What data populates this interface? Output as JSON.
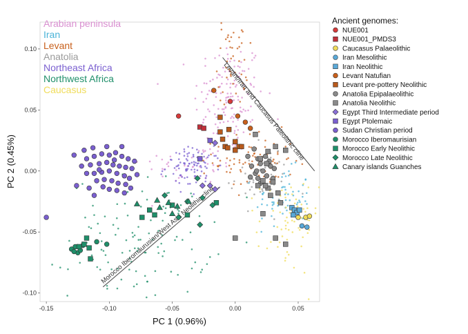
{
  "chart_data": {
    "type": "scatter",
    "xlabel": "PC 1 (0.96%)",
    "ylabel": "PC 2 (0.45%)",
    "xlim": [
      -0.155,
      0.067
    ],
    "ylim": [
      -0.107,
      0.122
    ],
    "x_ticks": [
      -0.15,
      -0.1,
      -0.05,
      0.0,
      0.05
    ],
    "x_tick_labels": [
      "-0.15",
      "-0.10",
      "-0.05",
      "0.00",
      "0.05"
    ],
    "y_ticks": [
      -0.1,
      -0.05,
      0.0,
      0.05,
      0.1
    ],
    "y_tick_labels": [
      "-0.10",
      "-0.05",
      "0.00",
      "0.05",
      "0.10"
    ],
    "grid": false,
    "region_legend": [
      {
        "label": "Arabian peninsula",
        "color": "#d98fd0"
      },
      {
        "label": "Iran",
        "color": "#4ab3d8"
      },
      {
        "label": "Levant",
        "color": "#c8601c"
      },
      {
        "label": "Anatolia",
        "color": "#9a9a9a"
      },
      {
        "label": "Northeast Africa",
        "color": "#7a5fd0"
      },
      {
        "label": "Northwest Africa",
        "color": "#1f8f6a"
      },
      {
        "label": "Caucasus",
        "color": "#f0dc5a"
      }
    ],
    "legend_title": "Ancient genomes:",
    "ancient_legend": [
      {
        "label": "NUE001",
        "shape": "circle",
        "color": "#d63a3a"
      },
      {
        "label": "NUE001_PMDS3",
        "shape": "square",
        "color": "#c0303a"
      },
      {
        "label": "Caucasus Palaeolithic",
        "shape": "circle",
        "color": "#f0dc5a"
      },
      {
        "label": "Iran Mesolithic",
        "shape": "circle",
        "color": "#5aa9d8"
      },
      {
        "label": "Iran Neolithic",
        "shape": "square",
        "color": "#5aa9d8"
      },
      {
        "label": "Levant Natufian",
        "shape": "circle",
        "color": "#c8601c"
      },
      {
        "label": "Levant pre-pottery Neolithic",
        "shape": "square",
        "color": "#b85a1c"
      },
      {
        "label": "Anatolia Epipalaeolithic",
        "shape": "circle",
        "color": "#8a8a8a"
      },
      {
        "label": "Anatolia Neolithic",
        "shape": "square",
        "color": "#8a8a8a"
      },
      {
        "label": "Egypt Third Intermediate period",
        "shape": "diamond",
        "color": "#8a6fd8"
      },
      {
        "label": "Egypt Ptolemaic",
        "shape": "square",
        "color": "#7a5fd0"
      },
      {
        "label": "Sudan Christian period",
        "shape": "circle",
        "color": "#7a5fd0"
      },
      {
        "label": "Morocco Iberomaurisian",
        "shape": "circle",
        "color": "#1f8f6a"
      },
      {
        "label": "Morocco Early Neolithic",
        "shape": "square",
        "color": "#1f8f6a"
      },
      {
        "label": "Morocco Late Neolithic",
        "shape": "diamond",
        "color": "#1f8f6a"
      },
      {
        "label": "Canary islands Guanches",
        "shape": "triangle",
        "color": "#1f8f6a"
      }
    ],
    "clines": [
      {
        "label": "Levant/Iran and Caucasus Paleolithic cline",
        "from": [
          -0.01,
          0.093
        ],
        "to": [
          0.063,
          0.0
        ]
      },
      {
        "label": "Morocco Iberomaurusian/West Asia Neolithic cline",
        "from": [
          -0.105,
          -0.095
        ],
        "to": [
          -0.012,
          -0.013
        ]
      }
    ],
    "background_clusters": [
      {
        "group": "Arabian peninsula",
        "color": "#d98fd0",
        "cx": -0.005,
        "cy": 0.06,
        "sx": 0.014,
        "sy": 0.024,
        "n": 140
      },
      {
        "group": "Arabian peninsula",
        "color": "#d98fd0",
        "cx": -0.035,
        "cy": 0.005,
        "sx": 0.02,
        "sy": 0.008,
        "n": 40
      },
      {
        "group": "Iran",
        "color": "#4ab3d8",
        "cx": 0.038,
        "cy": -0.022,
        "sx": 0.011,
        "sy": 0.012,
        "n": 60
      },
      {
        "group": "Levant",
        "color": "#c8601c",
        "cx": 0.015,
        "cy": 0.008,
        "sx": 0.016,
        "sy": 0.012,
        "n": 90
      },
      {
        "group": "Levant",
        "color": "#c8601c",
        "cx": -0.002,
        "cy": 0.09,
        "sx": 0.006,
        "sy": 0.018,
        "n": 45
      },
      {
        "group": "Anatolia",
        "color": "#9a9a9a",
        "cx": 0.02,
        "cy": -0.005,
        "sx": 0.012,
        "sy": 0.012,
        "n": 50
      },
      {
        "group": "Northeast Africa",
        "color": "#7a5fd0",
        "cx": -0.033,
        "cy": 0.003,
        "sx": 0.011,
        "sy": 0.008,
        "n": 90
      },
      {
        "group": "Northwest Africa",
        "color": "#1f8f6a",
        "cx": -0.075,
        "cy": -0.055,
        "sx": 0.028,
        "sy": 0.025,
        "n": 120
      },
      {
        "group": "Caucasus",
        "color": "#f0dc5a",
        "cx": 0.042,
        "cy": -0.045,
        "sx": 0.012,
        "sy": 0.02,
        "n": 70
      }
    ],
    "points": {
      "NUE001": [
        [
          -0.045,
          0.045
        ],
        [
          -0.004,
          0.057
        ]
      ],
      "NUE001_PMDS3": [
        [
          -0.028,
          0.036
        ],
        [
          -0.025,
          0.035
        ]
      ],
      "Caucasus Palaeolithic": [
        [
          0.05,
          -0.038
        ],
        [
          0.056,
          -0.038
        ],
        [
          0.059,
          -0.037
        ]
      ],
      "Iran Mesolithic": [
        [
          0.053,
          -0.045
        ],
        [
          0.057,
          -0.046
        ]
      ],
      "Iran Neolithic": [
        [
          0.045,
          -0.03
        ],
        [
          0.047,
          -0.032
        ],
        [
          0.049,
          -0.034
        ],
        [
          0.051,
          -0.032
        ],
        [
          0.046,
          -0.036
        ]
      ],
      "Levant Natufian": [
        [
          -0.017,
          0.066
        ],
        [
          0.002,
          0.045
        ],
        [
          0.012,
          0.035
        ],
        [
          0.008,
          0.04
        ]
      ],
      "Levant pre-pottery Neolithic": [
        [
          -0.012,
          0.044
        ],
        [
          -0.005,
          0.034
        ],
        [
          -0.012,
          0.032
        ],
        [
          -0.01,
          0.026
        ],
        [
          -0.008,
          0.02
        ],
        [
          0.0,
          0.024
        ],
        [
          0.003,
          0.02
        ],
        [
          -0.006,
          0.019
        ],
        [
          0.0,
          0.017
        ],
        [
          0.005,
          0.02
        ]
      ],
      "Anatolia Epipalaeolithic": [
        [
          0.015,
          0.018
        ],
        [
          0.01,
          0.012
        ],
        [
          0.018,
          0.01
        ],
        [
          0.024,
          0.012
        ],
        [
          0.02,
          0.006
        ],
        [
          0.013,
          0.004
        ],
        [
          0.028,
          0.004
        ],
        [
          0.022,
          0.0
        ],
        [
          0.016,
          -0.002
        ],
        [
          0.025,
          -0.004
        ],
        [
          0.018,
          -0.006
        ],
        [
          0.027,
          0.008
        ],
        [
          0.031,
          0.002
        ],
        [
          0.012,
          -0.005
        ],
        [
          0.02,
          -0.01
        ],
        [
          0.024,
          -0.012
        ],
        [
          0.017,
          0.0
        ],
        [
          0.03,
          -0.006
        ]
      ],
      "Anatolia Neolithic": [
        [
          0.016,
          0.03
        ],
        [
          0.032,
          0.02
        ],
        [
          0.04,
          0.017
        ],
        [
          0.026,
          0.016
        ],
        [
          0.02,
          0.01
        ],
        [
          0.025,
          0.006
        ],
        [
          0.022,
          -0.008
        ],
        [
          0.018,
          -0.012
        ],
        [
          0.026,
          -0.014
        ],
        [
          0.03,
          -0.009
        ],
        [
          0.028,
          -0.02
        ],
        [
          0.034,
          -0.018
        ],
        [
          0.036,
          -0.026
        ],
        [
          0.022,
          -0.035
        ],
        [
          0.0,
          -0.055
        ],
        [
          0.032,
          -0.055
        ],
        [
          0.04,
          -0.06
        ],
        [
          0.024,
          -0.012
        ]
      ],
      "Egypt Third Intermediate period": [
        [
          -0.016,
          0.023
        ],
        [
          -0.026,
          -0.012
        ],
        [
          -0.02,
          -0.012
        ],
        [
          -0.016,
          -0.015
        ]
      ],
      "Egypt Ptolemaic": [
        [
          -0.02,
          0.025
        ],
        [
          -0.028,
          0.01
        ]
      ],
      "Sudan Christian period": [
        [
          -0.15,
          -0.038
        ],
        [
          -0.128,
          0.013
        ],
        [
          -0.118,
          0.01
        ],
        [
          -0.112,
          0.012
        ],
        [
          -0.106,
          0.014
        ],
        [
          -0.1,
          0.013
        ],
        [
          -0.095,
          0.015
        ],
        [
          -0.09,
          0.012
        ],
        [
          -0.085,
          0.01
        ],
        [
          -0.08,
          0.008
        ],
        [
          -0.122,
          0.004
        ],
        [
          -0.115,
          0.005
        ],
        [
          -0.108,
          0.006
        ],
        [
          -0.102,
          0.007
        ],
        [
          -0.097,
          0.005
        ],
        [
          -0.092,
          0.004
        ],
        [
          -0.087,
          0.003
        ],
        [
          -0.082,
          0.002
        ],
        [
          -0.118,
          -0.002
        ],
        [
          -0.112,
          -0.002
        ],
        [
          -0.106,
          -0.001
        ],
        [
          -0.1,
          0.0
        ],
        [
          -0.094,
          -0.002
        ],
        [
          -0.088,
          -0.004
        ],
        [
          -0.084,
          -0.006
        ],
        [
          -0.11,
          -0.008
        ],
        [
          -0.104,
          -0.007
        ],
        [
          -0.098,
          -0.008
        ],
        [
          -0.093,
          -0.01
        ],
        [
          -0.087,
          -0.011
        ],
        [
          -0.1,
          -0.015
        ],
        [
          -0.094,
          -0.016
        ],
        [
          -0.088,
          -0.018
        ],
        [
          -0.105,
          -0.013
        ],
        [
          -0.126,
          -0.012
        ],
        [
          -0.112,
          -0.02
        ],
        [
          -0.078,
          -0.003
        ],
        [
          -0.09,
          0.02
        ],
        [
          -0.102,
          0.02
        ],
        [
          -0.113,
          0.019
        ],
        [
          -0.12,
          0.017
        ],
        [
          -0.096,
          0.009
        ],
        [
          -0.108,
          0.001
        ],
        [
          -0.116,
          -0.014
        ],
        [
          -0.083,
          -0.014
        ]
      ],
      "Morocco Iberomaurisian": [
        [
          -0.127,
          -0.062
        ],
        [
          -0.125,
          -0.067
        ],
        [
          -0.123,
          -0.065
        ],
        [
          -0.13,
          -0.064
        ],
        [
          -0.128,
          -0.066
        ],
        [
          -0.121,
          -0.061
        ],
        [
          -0.11,
          -0.058
        ],
        [
          -0.102,
          -0.06
        ]
      ],
      "Morocco Early Neolithic": [
        [
          -0.118,
          -0.055
        ],
        [
          -0.12,
          -0.06
        ],
        [
          -0.116,
          -0.063
        ],
        [
          -0.124,
          -0.062
        ],
        [
          -0.115,
          -0.072
        ],
        [
          -0.068,
          -0.032
        ],
        [
          -0.064,
          -0.036
        ],
        [
          -0.05,
          -0.028
        ],
        [
          -0.038,
          -0.036
        ],
        [
          -0.015,
          -0.026
        ],
        [
          -0.074,
          -0.038
        ]
      ],
      "Morocco Late Neolithic": [
        [
          -0.056,
          -0.02
        ],
        [
          -0.038,
          -0.025
        ],
        [
          -0.026,
          -0.022
        ],
        [
          -0.045,
          -0.038
        ],
        [
          -0.028,
          -0.044
        ],
        [
          -0.03,
          -0.006
        ],
        [
          -0.018,
          -0.028
        ]
      ],
      "Canary islands Guanches": [
        [
          -0.078,
          -0.027
        ],
        [
          -0.062,
          -0.024
        ],
        [
          -0.053,
          -0.026
        ],
        [
          -0.046,
          -0.029
        ],
        [
          -0.037,
          -0.025
        ],
        [
          -0.06,
          -0.03
        ],
        [
          -0.05,
          -0.035
        ]
      ]
    }
  }
}
